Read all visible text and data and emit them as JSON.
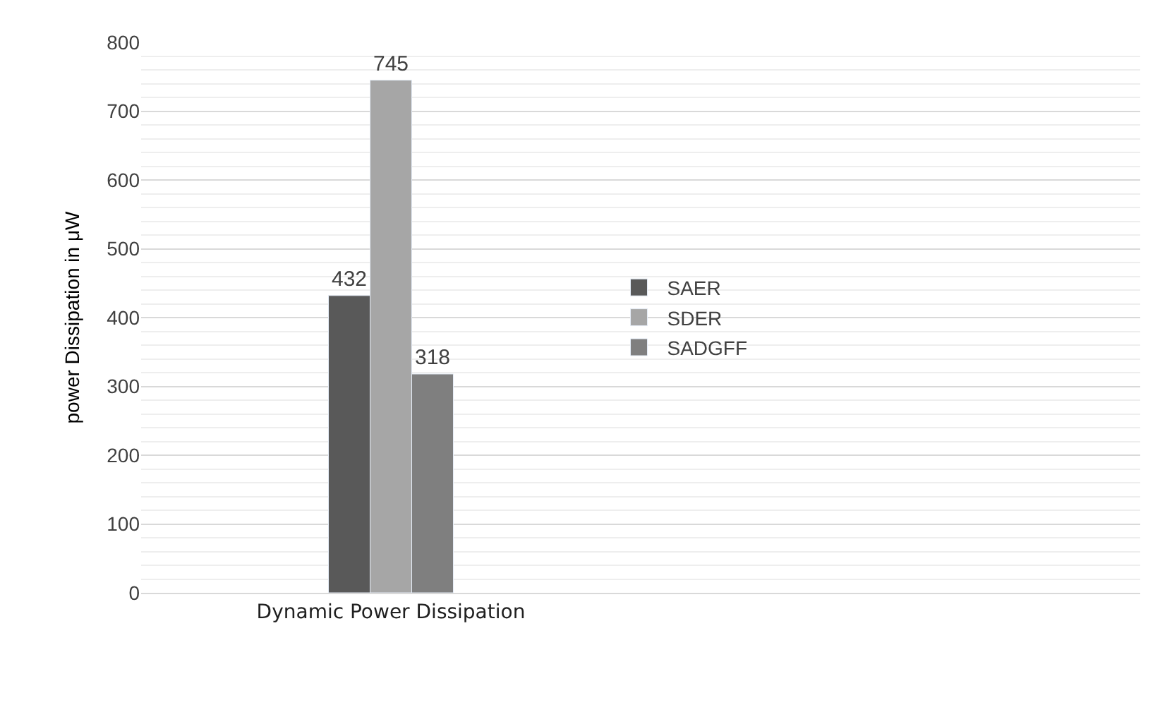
{
  "chart_data": {
    "type": "bar",
    "ylabel": "power Dissipation in μW",
    "categories": [
      "Dynamic Power Dissipation"
    ],
    "series": [
      {
        "name": "SAER",
        "color": "#595959",
        "values": [
          432
        ]
      },
      {
        "name": "SDER",
        "color": "#a6a6a6",
        "values": [
          745
        ]
      },
      {
        "name": "SADGFF",
        "color": "#7f7f7f",
        "values": [
          318
        ]
      }
    ],
    "ylim": [
      0,
      800
    ],
    "yticks": [
      0,
      100,
      200,
      300,
      400,
      500,
      600,
      700,
      800
    ],
    "grid": "y",
    "legend": "right",
    "data_labels": true
  }
}
